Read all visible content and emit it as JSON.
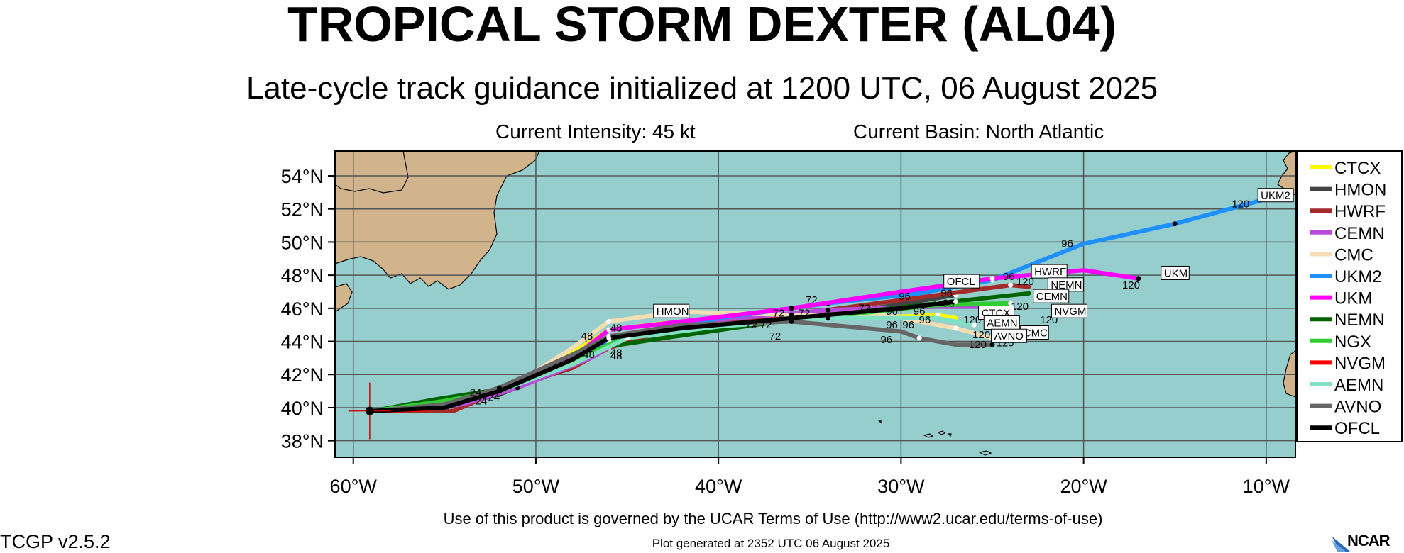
{
  "header": {
    "title": "TROPICAL STORM DEXTER (AL04)",
    "subtitle": "Late-cycle track guidance initialized at 1200 UTC, 06 August 2025",
    "intensity": "Current Intensity: 45 kt",
    "basin": "Current Basin: North Atlantic"
  },
  "map": {
    "lat_range": [
      37,
      55.5
    ],
    "lon_range": [
      -61,
      -8.4
    ],
    "lat_ticks": [
      {
        "v": 54,
        "label": "54°N"
      },
      {
        "v": 52,
        "label": "52°N"
      },
      {
        "v": 50,
        "label": "50°N"
      },
      {
        "v": 48,
        "label": "48°N"
      },
      {
        "v": 46,
        "label": "46°N"
      },
      {
        "v": 44,
        "label": "44°N"
      },
      {
        "v": 42,
        "label": "42°N"
      },
      {
        "v": 40,
        "label": "40°N"
      },
      {
        "v": 38,
        "label": "38°N"
      }
    ],
    "lon_ticks": [
      {
        "v": -60,
        "label": "60°W"
      },
      {
        "v": -50,
        "label": "50°W"
      },
      {
        "v": -40,
        "label": "40°W"
      },
      {
        "v": -30,
        "label": "30°W"
      },
      {
        "v": -20,
        "label": "20°W"
      },
      {
        "v": -10,
        "label": "10°W"
      }
    ],
    "ocean_color": "#96cdcd",
    "land_color": "#d2b48c",
    "current_position": {
      "lon": -59.1,
      "lat": 39.8
    }
  },
  "tracks": [
    {
      "name": "CTCX",
      "color": "#ffff00",
      "points": [
        [
          -58.9,
          39.8
        ],
        [
          -55,
          40
        ],
        [
          -52,
          41.1
        ],
        [
          -48,
          43.3
        ],
        [
          -46,
          44.7
        ],
        [
          -43,
          45.1
        ],
        [
          -38,
          45.3
        ],
        [
          -30,
          45.5
        ],
        [
          -28,
          45.6
        ],
        [
          -27,
          45.4
        ]
      ],
      "labels": [],
      "end_label": "120"
    },
    {
      "name": "HMON",
      "color": "#444444",
      "points": [
        [
          -58.9,
          39.8
        ],
        [
          -55,
          40
        ],
        [
          -52,
          40.8
        ],
        [
          -48,
          42.5
        ],
        [
          -46,
          43.9
        ],
        [
          -43,
          44.9
        ],
        [
          -38,
          45.3
        ],
        [
          -32,
          45.9
        ],
        [
          -27,
          46.8
        ]
      ],
      "labels": [
        "96"
      ],
      "end_label": ""
    },
    {
      "name": "HWRF",
      "color": "#a52a2a",
      "points": [
        [
          -58.9,
          39.8
        ],
        [
          -54.5,
          39.8
        ],
        [
          -52,
          41
        ],
        [
          -48,
          42.4
        ],
        [
          -46,
          43.6
        ],
        [
          -42,
          45
        ],
        [
          -36,
          45.6
        ],
        [
          -30,
          46.5
        ],
        [
          -24,
          47.4
        ],
        [
          -23,
          47.3
        ]
      ],
      "labels": [
        "96"
      ],
      "end_label": "120"
    },
    {
      "name": "CEMN",
      "color": "#b84ddb",
      "points": [
        [
          -58.9,
          39.8
        ],
        [
          -54,
          40.2
        ],
        [
          -51,
          41.2
        ],
        [
          -47,
          43
        ],
        [
          -45,
          44.3
        ],
        [
          -40,
          45.3
        ],
        [
          -34,
          45.9
        ],
        [
          -28,
          46.1
        ],
        [
          -24,
          46.1
        ]
      ],
      "labels": [
        "96"
      ],
      "end_label": "120"
    },
    {
      "name": "CMC",
      "color": "#f5deb3",
      "points": [
        [
          -58.9,
          39.8
        ],
        [
          -55,
          40.2
        ],
        [
          -51,
          41.5
        ],
        [
          -48,
          43.6
        ],
        [
          -46,
          45.2
        ],
        [
          -42,
          45.8
        ],
        [
          -36,
          45.6
        ],
        [
          -31,
          45.6
        ],
        [
          -27,
          44.8
        ],
        [
          -25,
          44.2
        ],
        [
          -24,
          44.1
        ]
      ],
      "labels": [
        "96"
      ],
      "end_label": "120"
    },
    {
      "name": "UKM2",
      "color": "#1e90ff",
      "points": [
        [
          -58.9,
          39.8
        ],
        [
          -55,
          40.5
        ],
        [
          -52,
          41.1
        ],
        [
          -48,
          42.6
        ],
        [
          -46,
          44
        ],
        [
          -40,
          45.4
        ],
        [
          -34,
          46.3
        ],
        [
          -29,
          46.9
        ],
        [
          -25,
          47.7
        ],
        [
          -20,
          49.9
        ],
        [
          -15,
          51.1
        ],
        [
          -10,
          52.6
        ]
      ],
      "labels": [
        "96"
      ],
      "end_label": "120"
    },
    {
      "name": "UKM",
      "color": "#ff00ff",
      "points": [
        [
          -58.9,
          39.8
        ],
        [
          -55,
          40.1
        ],
        [
          -52,
          41.1
        ],
        [
          -48,
          43
        ],
        [
          -46,
          44.7
        ],
        [
          -42,
          45.2
        ],
        [
          -36,
          46
        ],
        [
          -30,
          47
        ],
        [
          -25,
          47.8
        ],
        [
          -20,
          48.3
        ],
        [
          -17,
          47.8
        ]
      ],
      "labels": [
        "72"
      ],
      "end_label": "120"
    },
    {
      "name": "NEMN",
      "color": "#006400",
      "points": [
        [
          -58.9,
          39.8
        ],
        [
          -55.5,
          40.5
        ],
        [
          -52,
          41.1
        ],
        [
          -48,
          42.7
        ],
        [
          -46,
          43.7
        ],
        [
          -43,
          44.2
        ],
        [
          -38,
          45
        ],
        [
          -33,
          45.7
        ],
        [
          -28,
          46.3
        ],
        [
          -23,
          46.9
        ]
      ],
      "labels": [
        "96"
      ],
      "end_label": ""
    },
    {
      "name": "NGX",
      "color": "#32cd32",
      "points": [
        [
          -58.9,
          39.8
        ],
        [
          -55,
          40.4
        ],
        [
          -52,
          41
        ],
        [
          -48,
          42.8
        ],
        [
          -45,
          44.3
        ],
        [
          -40,
          45
        ],
        [
          -34,
          45.5
        ],
        [
          -28,
          46.2
        ],
        [
          -24,
          46.3
        ]
      ],
      "labels": [
        "96"
      ],
      "end_label": ""
    },
    {
      "name": "NVGM",
      "color": "#ff0000",
      "points": [
        [
          -58.9,
          39.8
        ],
        [
          -56,
          39.9
        ]
      ],
      "labels": [],
      "end_label": "120"
    },
    {
      "name": "AEMN",
      "color": "#7fe0c4",
      "points": [
        [
          -58.9,
          39.8
        ],
        [
          -55,
          40.2
        ],
        [
          -52,
          41
        ],
        [
          -48,
          42.6
        ],
        [
          -45,
          44.2
        ],
        [
          -40,
          44.9
        ],
        [
          -34,
          45.4
        ],
        [
          -28,
          45.4
        ],
        [
          -26,
          45
        ]
      ],
      "labels": [],
      "end_label": "120"
    },
    {
      "name": "AVNO",
      "color": "#666666",
      "points": [
        [
          -58.9,
          39.8
        ],
        [
          -55,
          40.2
        ],
        [
          -52,
          41.2
        ],
        [
          -48,
          43.2
        ],
        [
          -46,
          44.3
        ],
        [
          -42,
          45
        ],
        [
          -36,
          45.2
        ],
        [
          -30,
          44.6
        ],
        [
          -29,
          44.2
        ],
        [
          -27,
          43.8
        ],
        [
          -25,
          43.8
        ]
      ],
      "labels": [
        "96"
      ],
      "end_label": "120"
    },
    {
      "name": "OFCL",
      "color": "#000000",
      "points": [
        [
          -58.9,
          39.8
        ],
        [
          -55,
          40
        ],
        [
          -52,
          41
        ],
        [
          -48,
          42.9
        ],
        [
          -46,
          44.2
        ],
        [
          -42,
          44.8
        ],
        [
          -36,
          45.4
        ],
        [
          -30,
          46
        ],
        [
          -27,
          46.4
        ]
      ],
      "labels": [],
      "end_label": ""
    }
  ],
  "track_tags": [
    {
      "text": "HMON",
      "lon": -43.4,
      "lat": 45.6
    },
    {
      "text": "OFCL",
      "lon": -27.5,
      "lat": 47.4
    },
    {
      "text": "HWRF",
      "lon": -22.7,
      "lat": 48
    },
    {
      "text": "NEMN",
      "lon": -21.8,
      "lat": 47.2
    },
    {
      "text": "CEMN",
      "lon": -22.6,
      "lat": 46.5
    },
    {
      "text": "NVGM",
      "lon": -21.6,
      "lat": 45.6
    },
    {
      "text": "UKM2",
      "lon": -10.3,
      "lat": 52.6
    },
    {
      "text": "UKM",
      "lon": -15.6,
      "lat": 47.9
    },
    {
      "text": "CTCX",
      "lon": -25.6,
      "lat": 45.5
    },
    {
      "text": "AEMN",
      "lon": -25.3,
      "lat": 44.9
    },
    {
      "text": "CMC",
      "lon": -23.3,
      "lat": 44.3
    },
    {
      "text": "AVNO",
      "lon": -24.9,
      "lat": 44.1
    }
  ],
  "hour_labels": [
    {
      "text": "96",
      "lon": -20.9,
      "lat": 49.7
    },
    {
      "text": "120",
      "lon": -11.4,
      "lat": 52.1
    },
    {
      "text": "96",
      "lon": -24.1,
      "lat": 47.7
    },
    {
      "text": "120",
      "lon": -23.2,
      "lat": 47.4
    },
    {
      "text": "96",
      "lon": -29.8,
      "lat": 46.5
    },
    {
      "text": "96",
      "lon": -27.5,
      "lat": 46.7
    },
    {
      "text": "96",
      "lon": -27.4,
      "lat": 46.1
    },
    {
      "text": "120",
      "lon": -23.5,
      "lat": 45.9
    },
    {
      "text": "120",
      "lon": -21.9,
      "lat": 45.1
    },
    {
      "text": "120",
      "lon": -17.4,
      "lat": 47.2
    },
    {
      "text": "96",
      "lon": -30.5,
      "lat": 45.6
    },
    {
      "text": "96",
      "lon": -29,
      "lat": 45.6
    },
    {
      "text": "96",
      "lon": -28.7,
      "lat": 45.1
    },
    {
      "text": "120",
      "lon": -26.1,
      "lat": 45.1
    },
    {
      "text": "96",
      "lon": -30.5,
      "lat": 44.8
    },
    {
      "text": "96",
      "lon": -29.6,
      "lat": 44.8
    },
    {
      "text": "96",
      "lon": -30.8,
      "lat": 43.9
    },
    {
      "text": "120",
      "lon": -25.8,
      "lat": 43.6
    },
    {
      "text": "120",
      "lon": -24.3,
      "lat": 43.7
    },
    {
      "text": "120",
      "lon": -25.6,
      "lat": 44.2
    },
    {
      "text": "72",
      "lon": -34.9,
      "lat": 46.3
    },
    {
      "text": "72",
      "lon": -32,
      "lat": 45.8
    },
    {
      "text": "72",
      "lon": -36.7,
      "lat": 45.5
    },
    {
      "text": "72",
      "lon": -35.3,
      "lat": 45.5
    },
    {
      "text": "72",
      "lon": -38.2,
      "lat": 44.8
    },
    {
      "text": "72",
      "lon": -37.4,
      "lat": 44.8
    },
    {
      "text": "72",
      "lon": -36.9,
      "lat": 44.1
    },
    {
      "text": "48",
      "lon": -47.2,
      "lat": 44.1
    },
    {
      "text": "48",
      "lon": -45.6,
      "lat": 44.6
    },
    {
      "text": "48",
      "lon": -45.6,
      "lat": 43.1
    },
    {
      "text": "48",
      "lon": -47.1,
      "lat": 43.0
    },
    {
      "text": "48",
      "lon": -45.6,
      "lat": 42.9
    },
    {
      "text": "24",
      "lon": -53.3,
      "lat": 40.7
    },
    {
      "text": "24",
      "lon": -53.0,
      "lat": 40.2
    },
    {
      "text": "24",
      "lon": -52.3,
      "lat": 40.4
    }
  ],
  "legend": [
    {
      "name": "CTCX",
      "color": "#ffff00"
    },
    {
      "name": "HMON",
      "color": "#444444"
    },
    {
      "name": "HWRF",
      "color": "#a52a2a"
    },
    {
      "name": "CEMN",
      "color": "#b84ddb"
    },
    {
      "name": "CMC",
      "color": "#f5deb3"
    },
    {
      "name": "UKM2",
      "color": "#1e90ff"
    },
    {
      "name": "UKM",
      "color": "#ff00ff"
    },
    {
      "name": "NEMN",
      "color": "#006400"
    },
    {
      "name": "NGX",
      "color": "#32cd32"
    },
    {
      "name": "NVGM",
      "color": "#ff0000"
    },
    {
      "name": "AEMN",
      "color": "#7fe0c4"
    },
    {
      "name": "AVNO",
      "color": "#666666"
    },
    {
      "name": "OFCL",
      "color": "#000000"
    }
  ],
  "footer": {
    "terms": "Use of this product is governed by the UCAR Terms of Use (http://www2.ucar.edu/terms-of-use)",
    "generated": "Plot generated at 2352 UTC   06 August 2025",
    "version": "TCGP v2.5.2",
    "logo": "NCAR"
  }
}
